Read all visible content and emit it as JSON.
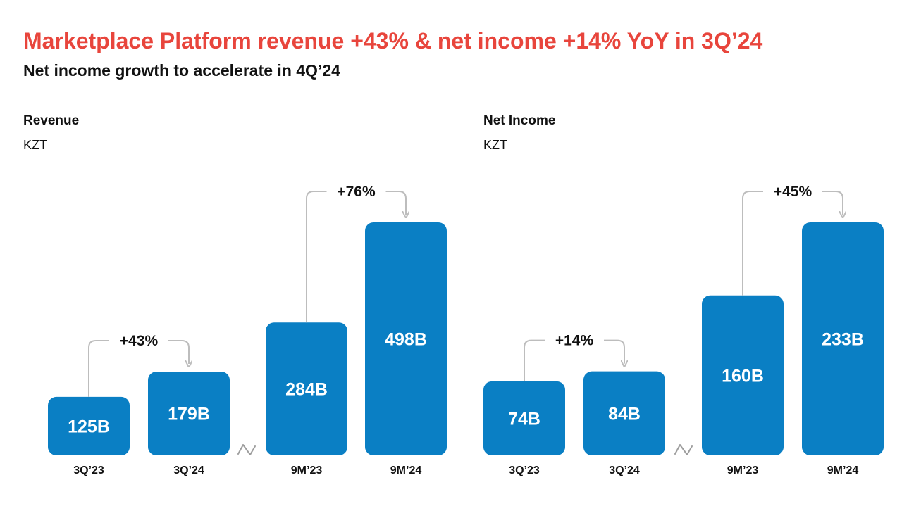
{
  "header": {
    "title": "Marketplace Platform revenue +43% & net income +14% YoY in 3Q’24",
    "subtitle": "Net income growth to accelerate in 4Q’24"
  },
  "colors": {
    "bar": "#0a7fc4",
    "title": "#e8453c",
    "connector": "#bdbdbd"
  },
  "chart_data": [
    {
      "type": "bar",
      "title": "Revenue",
      "unit": "KZT",
      "categories": [
        "3Q’23",
        "3Q’24",
        "9M’23",
        "9M’24"
      ],
      "values": [
        125,
        179,
        284,
        498
      ],
      "value_labels": [
        "125B",
        "179B",
        "284B",
        "498B"
      ],
      "axis_break_between": [
        1,
        2
      ],
      "growth": [
        {
          "from": 0,
          "to": 1,
          "label": "+43%"
        },
        {
          "from": 2,
          "to": 3,
          "label": "+76%"
        }
      ]
    },
    {
      "type": "bar",
      "title": "Net Income",
      "unit": "KZT",
      "categories": [
        "3Q’23",
        "3Q’24",
        "9M’23",
        "9M’24"
      ],
      "values": [
        74,
        84,
        160,
        233
      ],
      "value_labels": [
        "74B",
        "84B",
        "160B",
        "233B"
      ],
      "axis_break_between": [
        1,
        2
      ],
      "growth": [
        {
          "from": 0,
          "to": 1,
          "label": "+14%"
        },
        {
          "from": 2,
          "to": 3,
          "label": "+45%"
        }
      ]
    }
  ]
}
